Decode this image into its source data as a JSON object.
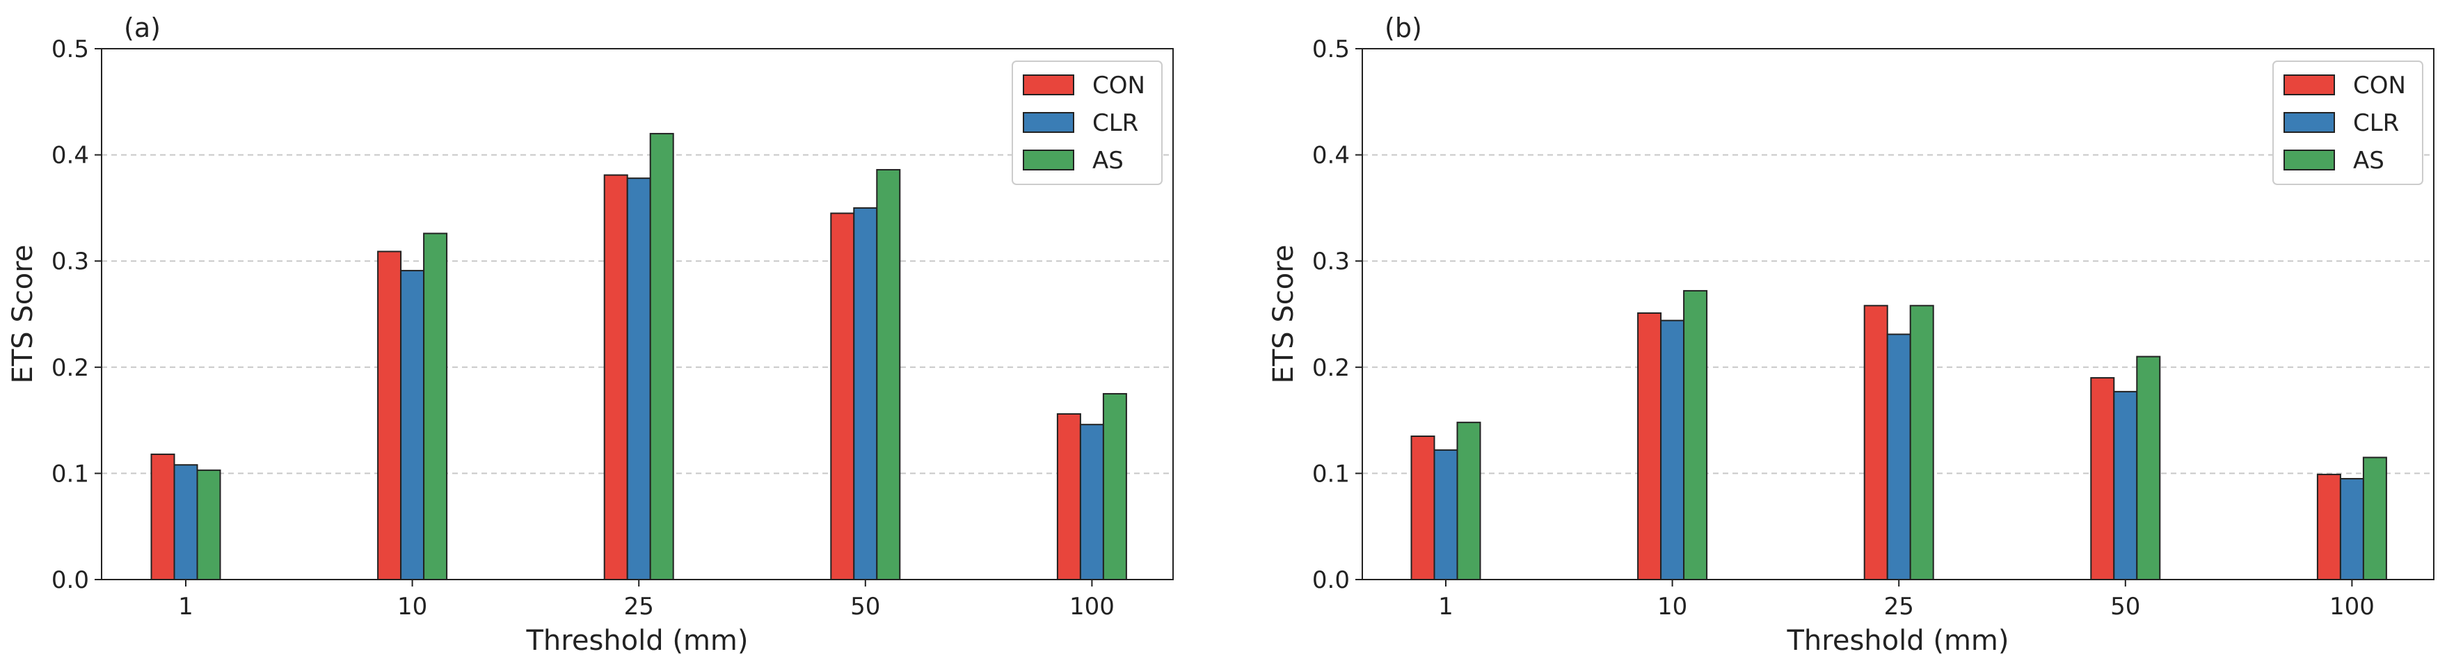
{
  "chart_data": [
    {
      "type": "bar",
      "panel_label": "(a)",
      "categories": [
        "1",
        "10",
        "25",
        "50",
        "100"
      ],
      "series": [
        {
          "name": "CON",
          "color": "#e8453c",
          "values": [
            0.118,
            0.309,
            0.381,
            0.345,
            0.156
          ]
        },
        {
          "name": "CLR",
          "color": "#3a7db5",
          "values": [
            0.108,
            0.291,
            0.378,
            0.35,
            0.146
          ]
        },
        {
          "name": "AS",
          "color": "#4aa35d",
          "values": [
            0.103,
            0.326,
            0.42,
            0.386,
            0.175
          ]
        }
      ],
      "xlabel": "Threshold (mm)",
      "ylabel": "ETS Score",
      "ylim": [
        0,
        0.5
      ],
      "yticks": [
        "0.0",
        "0.1",
        "0.2",
        "0.3",
        "0.4",
        "0.5"
      ],
      "grid": "y-dashed",
      "legend_position": "top-right"
    },
    {
      "type": "bar",
      "panel_label": "(b)",
      "categories": [
        "1",
        "10",
        "25",
        "50",
        "100"
      ],
      "series": [
        {
          "name": "CON",
          "color": "#e8453c",
          "values": [
            0.135,
            0.251,
            0.258,
            0.19,
            0.099
          ]
        },
        {
          "name": "CLR",
          "color": "#3a7db5",
          "values": [
            0.122,
            0.244,
            0.231,
            0.177,
            0.095
          ]
        },
        {
          "name": "AS",
          "color": "#4aa35d",
          "values": [
            0.148,
            0.272,
            0.258,
            0.21,
            0.115
          ]
        }
      ],
      "xlabel": "Threshold (mm)",
      "ylabel": "ETS Score",
      "ylim": [
        0,
        0.5
      ],
      "yticks": [
        "0.0",
        "0.1",
        "0.2",
        "0.3",
        "0.4",
        "0.5"
      ],
      "grid": "y-dashed",
      "legend_position": "top-right"
    }
  ]
}
